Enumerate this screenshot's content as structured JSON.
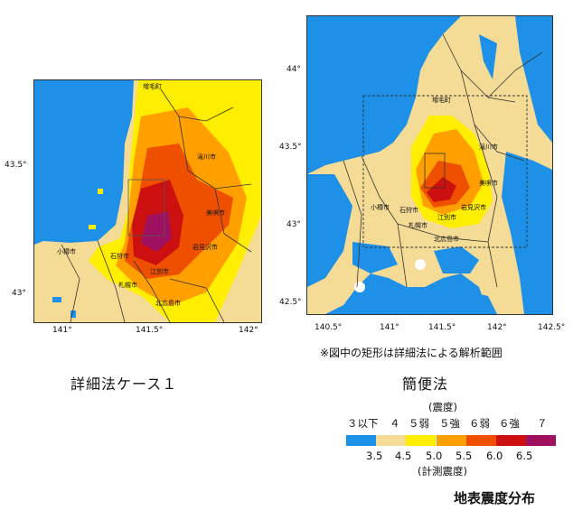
{
  "detailed_map": {
    "caption": "詳細法ケース１",
    "lon_ticks": [
      "141°",
      "141.5°",
      "142°"
    ],
    "lat_ticks": [
      "43.5°",
      "43°"
    ],
    "places": [
      "増毛町",
      "滝川市",
      "美唄市",
      "石狩市",
      "岩見沢市",
      "小樽市",
      "江別市",
      "札幌市",
      "北広島市"
    ]
  },
  "simple_map": {
    "caption": "簡便法",
    "note": "※図中の矩形は詳細法による解析範囲",
    "lon_ticks": [
      "140.5°",
      "141°",
      "141.5°",
      "142°",
      "142.5°"
    ],
    "lat_ticks": [
      "44°",
      "43.5°",
      "43°",
      "42.5°"
    ],
    "places": [
      "増毛町",
      "滝川市",
      "美唄市",
      "石狩市",
      "小樽市",
      "岩見沢市",
      "江別市",
      "札幌市",
      "北広島市"
    ]
  },
  "legend": {
    "title_top": "(震度)",
    "intensity_classes": [
      "３以下",
      "４",
      "５弱",
      "５強",
      "６弱",
      "６強",
      "７"
    ],
    "measured_values": [
      "3.5",
      "4.5",
      "5.0",
      "5.5",
      "6.0",
      "6.5"
    ],
    "title_bottom": "(計測震度)",
    "colors": [
      "#1e90e8",
      "#f5dc96",
      "#ffee00",
      "#ffa000",
      "#ee5000",
      "#cc1010",
      "#a01060"
    ]
  },
  "footer_title": "地表震度分布"
}
